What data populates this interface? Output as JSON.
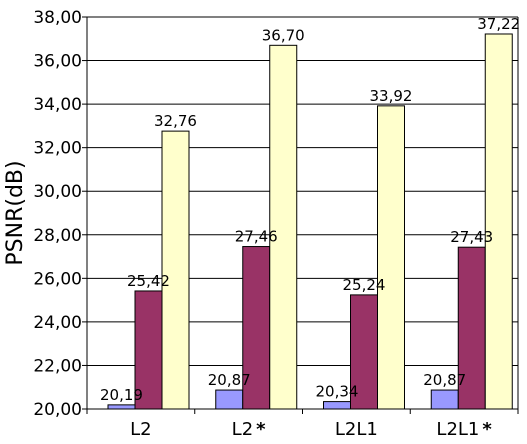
{
  "chart_data": {
    "type": "bar",
    "categories": [
      "L2",
      "L2",
      "L2L1",
      "L2L1"
    ],
    "category_markers": [
      "",
      "*",
      "",
      "*"
    ],
    "series": [
      {
        "values": [
          20.19,
          20.87,
          20.34,
          20.87
        ],
        "labels": [
          "20,19",
          "20,87",
          "20,34",
          "20,87"
        ],
        "color": "#9999ff"
      },
      {
        "values": [
          25.42,
          27.46,
          25.24,
          27.43
        ],
        "labels": [
          "25,42",
          "27,46",
          "25,24",
          "27,43"
        ],
        "color": "#993366"
      },
      {
        "values": [
          32.76,
          36.7,
          33.92,
          37.22
        ],
        "labels": [
          "32,76",
          "36,70",
          "33,92",
          "37,22"
        ],
        "color": "#ffffcc"
      }
    ],
    "title": "",
    "xlabel": "",
    "ylabel": "PSNR(dB)",
    "ylim": [
      20,
      38
    ],
    "yticks": [
      20,
      22,
      24,
      26,
      28,
      30,
      32,
      34,
      36,
      38
    ],
    "ytick_labels": [
      "20,00",
      "22,00",
      "24,00",
      "26,00",
      "28,00",
      "30,00",
      "32,00",
      "34,00",
      "36,00",
      "38,00"
    ],
    "grid": true,
    "legend": "none"
  }
}
